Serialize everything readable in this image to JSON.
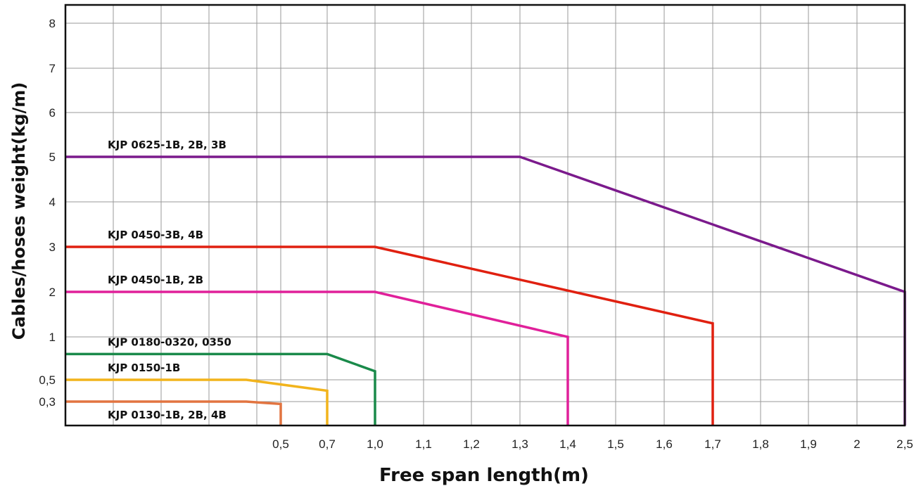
{
  "chart_data": {
    "type": "line",
    "xlabel": "Free span length(m)",
    "ylabel": "Cables/hoses weight(kg/m)",
    "x_ticks": [
      "0,5",
      "0,7",
      "1,0",
      "1,1",
      "1,2",
      "1,3",
      "1,4",
      "1,5",
      "1,6",
      "1,7",
      "1,8",
      "1,9",
      "2",
      "2,5"
    ],
    "y_ticks": [
      "0,3",
      "0,5",
      "1",
      "2",
      "3",
      "4",
      "5",
      "6",
      "7",
      "8"
    ],
    "grid": true,
    "series": [
      {
        "name": "KJP 0625-1B, 2B, 3B",
        "color": "#7b1a8c",
        "points": [
          [
            0,
            5
          ],
          [
            1.3,
            5
          ],
          [
            2.5,
            2
          ],
          [
            2.5,
            0
          ]
        ]
      },
      {
        "name": "KJP 0450-3B, 4B",
        "color": "#e02010",
        "points": [
          [
            0,
            3
          ],
          [
            1.0,
            3
          ],
          [
            1.7,
            1.3
          ],
          [
            1.7,
            0
          ]
        ]
      },
      {
        "name": "KJP 0450-1B, 2B",
        "color": "#e0209a",
        "points": [
          [
            0,
            2
          ],
          [
            1.0,
            2
          ],
          [
            1.4,
            1.0
          ],
          [
            1.4,
            0
          ]
        ]
      },
      {
        "name": "KJP 0180-0320, 0350",
        "color": "#1a8a4a",
        "points": [
          [
            0,
            0.8
          ],
          [
            0.7,
            0.8
          ],
          [
            1.0,
            0.6
          ],
          [
            1.0,
            0
          ]
        ]
      },
      {
        "name": "KJP 0150-1B",
        "color": "#f2b41c",
        "points": [
          [
            0,
            0.5
          ],
          [
            0.42,
            0.5
          ],
          [
            0.7,
            0.4
          ],
          [
            0.7,
            0
          ]
        ]
      },
      {
        "name": "KJP 0130-1B, 2B, 4B",
        "color": "#e27440",
        "points": [
          [
            0,
            0.3
          ],
          [
            0.42,
            0.3
          ],
          [
            0.5,
            0.27
          ],
          [
            0.5,
            0
          ]
        ]
      }
    ]
  }
}
